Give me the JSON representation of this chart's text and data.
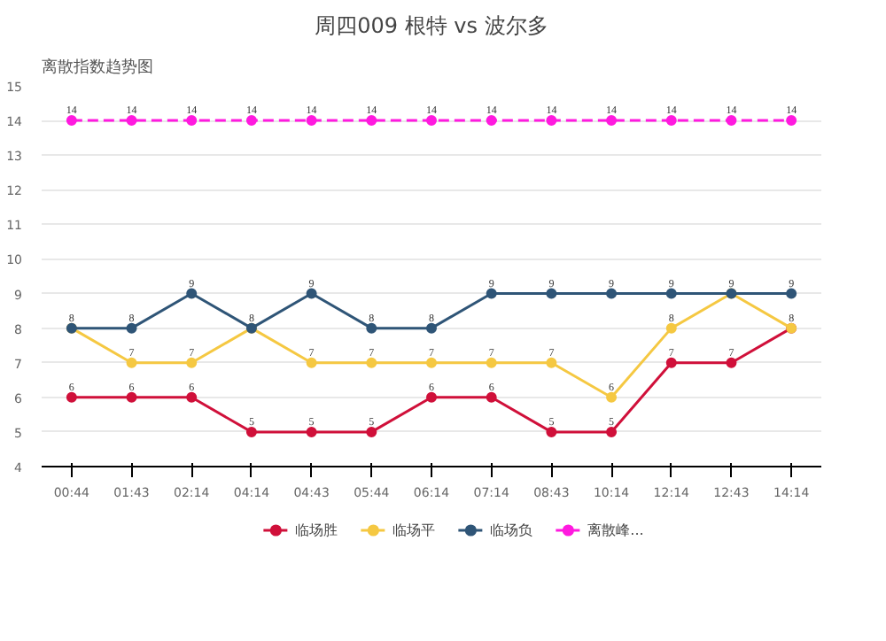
{
  "chart_data": {
    "type": "line",
    "title": "周四009 根特 vs 波尔多",
    "annotations": [
      "离散指数趋势图"
    ],
    "categories": [
      "00:44",
      "01:43",
      "02:14",
      "04:14",
      "04:43",
      "05:44",
      "06:14",
      "07:14",
      "08:43",
      "10:14",
      "12:14",
      "12:43",
      "14:14"
    ],
    "series": [
      {
        "name": "临场胜",
        "color": "#d0103a",
        "values": [
          6,
          6,
          6,
          5,
          5,
          5,
          6,
          6,
          5,
          5,
          7,
          7,
          8
        ],
        "value_labels": [
          "6",
          "6",
          "6",
          "5",
          "5",
          "5",
          "6",
          "6",
          "5",
          "5",
          "7",
          "7",
          "8"
        ]
      },
      {
        "name": "临场平",
        "color": "#f5c842",
        "values": [
          8,
          7,
          7,
          8,
          7,
          7,
          7,
          7,
          7,
          6,
          8,
          9,
          8
        ],
        "value_labels": [
          "8",
          "7",
          "7",
          "8",
          "7",
          "7",
          "7",
          "7",
          "7",
          "6",
          "8",
          "9",
          null
        ]
      },
      {
        "name": "临场负",
        "color": "#2f5577",
        "values": [
          8,
          8,
          9,
          8,
          9,
          8,
          8,
          9,
          9,
          9,
          9,
          9,
          9
        ],
        "value_labels": [
          null,
          "8",
          "9",
          null,
          "9",
          "8",
          "8",
          "9",
          "9",
          "9",
          "9",
          null,
          "9"
        ]
      },
      {
        "name": "离散峰...",
        "color": "#ff1adf",
        "line_style": "dashed",
        "values": [
          14,
          14,
          14,
          14,
          14,
          14,
          14,
          14,
          14,
          14,
          14,
          14,
          14
        ],
        "value_labels": [
          "14",
          "14",
          "14",
          "14",
          "14",
          "14",
          "14",
          "14",
          "14",
          "14",
          "14",
          "14",
          "14"
        ]
      }
    ],
    "ylim": [
      4,
      15
    ],
    "yticks": [
      4,
      5,
      6,
      7,
      8,
      9,
      10,
      11,
      12,
      13,
      14,
      15
    ],
    "grid": "y",
    "legend": "bottom",
    "marker": "circle",
    "line_style": "solid"
  }
}
